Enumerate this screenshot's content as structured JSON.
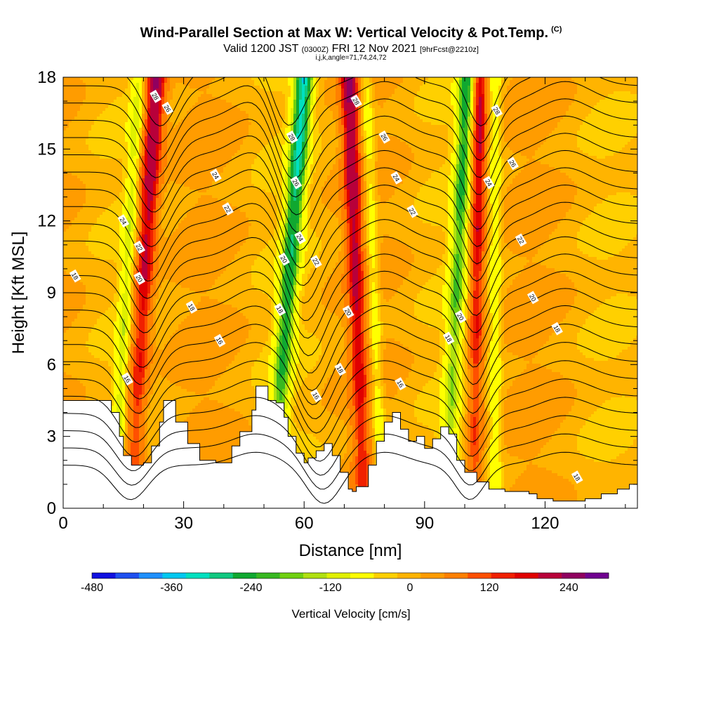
{
  "header": {
    "title": "Wind-Parallel Section at Max W: Vertical Velocity & Pot.Temp.",
    "copyright": "(C)",
    "subtitle_valid": "Valid 1200 JST",
    "subtitle_utc": "(0300Z)",
    "subtitle_date": "FRI 12 Nov 2021",
    "subtitle_fcst": "[9hrFcst@2210z]",
    "params": "i,j,k,angle=71,74,24,72"
  },
  "chart_data": {
    "type": "heatmap",
    "xlabel": "Distance [nm]",
    "ylabel": "Height [Kft MSL]",
    "xlim": [
      0,
      143
    ],
    "ylim": [
      0,
      18
    ],
    "x_ticks": [
      0,
      30,
      60,
      90,
      120
    ],
    "y_ticks": [
      0,
      3,
      6,
      9,
      12,
      15,
      18
    ],
    "fill_variable": "Vertical Velocity [cm/s]",
    "contour_variable": "Potential Temperature",
    "colorbar": {
      "label": "Vertical Velocity [cm/s]",
      "tick_labels": [
        "-480",
        "-360",
        "-240",
        "-120",
        "0",
        "120",
        "240"
      ],
      "tick_values": [
        -480,
        -360,
        -240,
        -120,
        0,
        120,
        240
      ],
      "range": [
        -480,
        300
      ],
      "interval": 30,
      "colors": [
        "#1010e0",
        "#1e50f0",
        "#1e90ff",
        "#00c8f0",
        "#00e0c0",
        "#10c880",
        "#10a830",
        "#38b820",
        "#70d010",
        "#b0e010",
        "#e0f000",
        "#ffff00",
        "#ffd000",
        "#ffb400",
        "#ff9c00",
        "#ff8000",
        "#ff5000",
        "#f02000",
        "#e00000",
        "#b8003a",
        "#900060",
        "#700090"
      ]
    },
    "updraft_x": [
      20,
      73,
      103
    ],
    "downdraft_x": [
      56,
      98
    ],
    "contour_labels": [
      {
        "text": "28",
        "x": 23,
        "y": 17.2
      },
      {
        "text": "26",
        "x": 26,
        "y": 16.7
      },
      {
        "text": "24",
        "x": 38,
        "y": 13.9
      },
      {
        "text": "22",
        "x": 41,
        "y": 12.5
      },
      {
        "text": "24",
        "x": 15,
        "y": 12.0
      },
      {
        "text": "22",
        "x": 19,
        "y": 10.9
      },
      {
        "text": "20",
        "x": 19,
        "y": 9.6
      },
      {
        "text": "18",
        "x": 3,
        "y": 9.7
      },
      {
        "text": "18",
        "x": 32,
        "y": 8.4
      },
      {
        "text": "16",
        "x": 39,
        "y": 7.0
      },
      {
        "text": "16",
        "x": 16,
        "y": 5.4
      },
      {
        "text": "28",
        "x": 57,
        "y": 15.5
      },
      {
        "text": "26",
        "x": 58,
        "y": 13.6
      },
      {
        "text": "24",
        "x": 59,
        "y": 11.3
      },
      {
        "text": "20",
        "x": 55,
        "y": 10.4
      },
      {
        "text": "22",
        "x": 63,
        "y": 10.3
      },
      {
        "text": "18",
        "x": 54,
        "y": 8.3
      },
      {
        "text": "20",
        "x": 71,
        "y": 8.2
      },
      {
        "text": "18",
        "x": 69,
        "y": 5.8
      },
      {
        "text": "16",
        "x": 63,
        "y": 4.7
      },
      {
        "text": "28",
        "x": 73,
        "y": 17.0
      },
      {
        "text": "26",
        "x": 80,
        "y": 15.5
      },
      {
        "text": "24",
        "x": 83,
        "y": 13.8
      },
      {
        "text": "22",
        "x": 87,
        "y": 12.4
      },
      {
        "text": "16",
        "x": 84,
        "y": 5.2
      },
      {
        "text": "28",
        "x": 108,
        "y": 16.6
      },
      {
        "text": "26",
        "x": 112,
        "y": 14.4
      },
      {
        "text": "24",
        "x": 106,
        "y": 13.6
      },
      {
        "text": "22",
        "x": 114,
        "y": 11.2
      },
      {
        "text": "20",
        "x": 117,
        "y": 8.8
      },
      {
        "text": "20",
        "x": 99,
        "y": 8.0
      },
      {
        "text": "18",
        "x": 96,
        "y": 7.1
      },
      {
        "text": "18",
        "x": 123,
        "y": 7.5
      },
      {
        "text": "18",
        "x": 128,
        "y": 1.3
      }
    ]
  }
}
